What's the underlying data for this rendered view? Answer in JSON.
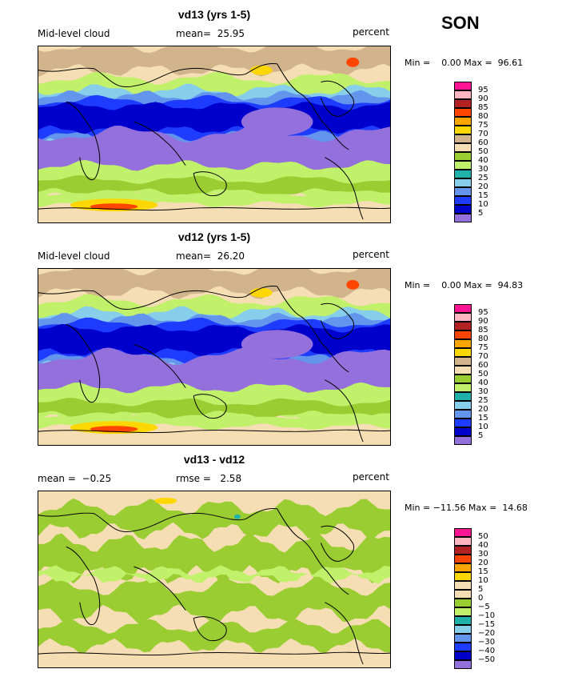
{
  "season": "SON",
  "panels": [
    {
      "title": "vd13 (yrs 1-5)",
      "left_label": "Mid-level cloud",
      "center_label": "mean=  25.95",
      "units": "percent",
      "minmax": "Min =    0.00 Max =  96.61",
      "scale": "cloud"
    },
    {
      "title": "vd12 (yrs 1-5)",
      "left_label": "Mid-level cloud",
      "center_label": "mean=  26.20",
      "units": "percent",
      "minmax": "Min =    0.00 Max =  94.83",
      "scale": "cloud"
    },
    {
      "title": "vd13 - vd12",
      "left_label": "mean =  −0.25",
      "center_label": "rmse =   2.58",
      "units": "percent",
      "minmax": "Min = −11.56 Max =  14.68",
      "scale": "diff"
    }
  ],
  "colorbars": {
    "cloud": {
      "labels": [
        "95",
        "90",
        "85",
        "80",
        "75",
        "70",
        "60",
        "50",
        "40",
        "30",
        "25",
        "20",
        "15",
        "10",
        "5"
      ],
      "colors": [
        "#ff1493",
        "#ffb6c1",
        "#b22222",
        "#ff4500",
        "#ffa500",
        "#ffd700",
        "#d2b48c",
        "#f5deb3",
        "#9acd32",
        "#c1f06a",
        "#20b2aa",
        "#87ceeb",
        "#6495ed",
        "#1e3cff",
        "#0000cd",
        "#9370db"
      ]
    },
    "diff": {
      "labels": [
        "50",
        "40",
        "30",
        "20",
        "15",
        "10",
        "5",
        "0",
        "−5",
        "−10",
        "−15",
        "−20",
        "−30",
        "−40",
        "−50"
      ],
      "colors": [
        "#ff1493",
        "#ffb6c1",
        "#b22222",
        "#ff4500",
        "#ffa500",
        "#ffd700",
        "#f5deb3",
        "#f5deb3",
        "#9acd32",
        "#c1f06a",
        "#20b2aa",
        "#87ceeb",
        "#6495ed",
        "#1e3cff",
        "#0000cd",
        "#9370db"
      ]
    }
  },
  "chart_data": [
    {
      "type": "heatmap",
      "title": "vd13 (yrs 1-5)",
      "field": "Mid-level cloud",
      "units": "percent",
      "mean": 25.95,
      "min": 0.0,
      "max": 96.61,
      "contour_levels": [
        5,
        10,
        15,
        20,
        25,
        30,
        40,
        50,
        60,
        70,
        75,
        80,
        85,
        90,
        95
      ]
    },
    {
      "type": "heatmap",
      "title": "vd12 (yrs 1-5)",
      "field": "Mid-level cloud",
      "units": "percent",
      "mean": 26.2,
      "min": 0.0,
      "max": 94.83,
      "contour_levels": [
        5,
        10,
        15,
        20,
        25,
        30,
        40,
        50,
        60,
        70,
        75,
        80,
        85,
        90,
        95
      ]
    },
    {
      "type": "heatmap",
      "title": "vd13 - vd12",
      "units": "percent",
      "mean": -0.25,
      "rmse": 2.58,
      "min": -11.56,
      "max": 14.68,
      "contour_levels": [
        -50,
        -40,
        -30,
        -20,
        -15,
        -10,
        -5,
        0,
        5,
        10,
        15,
        20,
        30,
        40,
        50
      ]
    }
  ]
}
